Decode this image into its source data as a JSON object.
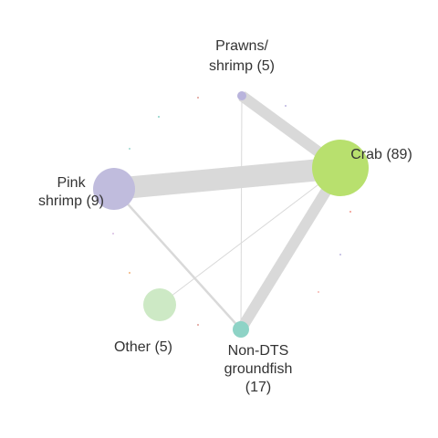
{
  "network": {
    "nodes": [
      {
        "id": "prawns",
        "label_lines": [
          "Prawns/",
          "shrimp (5)"
        ],
        "color": "#b9b4dc",
        "weight": 5
      },
      {
        "id": "crab",
        "label_lines": [
          "Crab (89)"
        ],
        "color": "#b8e06e",
        "weight": 89
      },
      {
        "id": "pink",
        "label_lines": [
          "Pink",
          "shrimp (9)"
        ],
        "color": "#c0bcdd",
        "weight": 9
      },
      {
        "id": "other",
        "label_lines": [
          "Other (5)"
        ],
        "color": "#cde9c5",
        "weight": 5
      },
      {
        "id": "nondts",
        "label_lines": [
          "Non-DTS",
          "groundfish",
          "(17)"
        ],
        "color": "#8ed3c6",
        "weight": 17
      }
    ],
    "edges": [
      {
        "source": "pink",
        "target": "crab",
        "strength": "heavy"
      },
      {
        "source": "prawns",
        "target": "crab",
        "strength": "medium"
      },
      {
        "source": "crab",
        "target": "nondts",
        "strength": "medium"
      },
      {
        "source": "pink",
        "target": "nondts",
        "strength": "light"
      },
      {
        "source": "other",
        "target": "crab",
        "strength": "thin"
      },
      {
        "source": "prawns",
        "target": "nondts",
        "strength": "thin"
      }
    ],
    "edge_color": "#d9d9d9"
  }
}
